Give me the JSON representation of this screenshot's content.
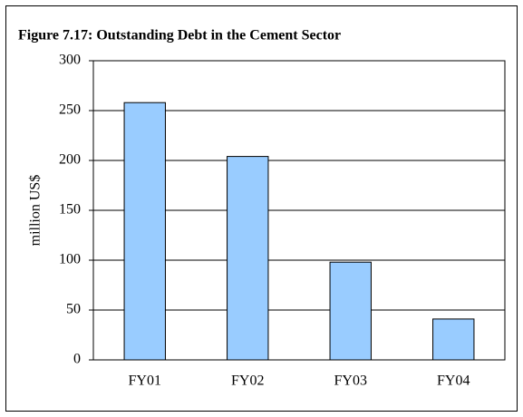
{
  "chart_data": {
    "type": "bar",
    "title": "Figure 7.17: Outstanding Debt in the Cement Sector",
    "ylabel": "million US$",
    "categories": [
      "FY01",
      "FY02",
      "FY03",
      "FY04"
    ],
    "values": [
      258,
      204,
      98,
      41
    ],
    "color": "#99ccff",
    "ylim": [
      0,
      300
    ],
    "yticks": [
      0,
      50,
      100,
      150,
      200,
      250,
      300
    ],
    "grid": true
  }
}
